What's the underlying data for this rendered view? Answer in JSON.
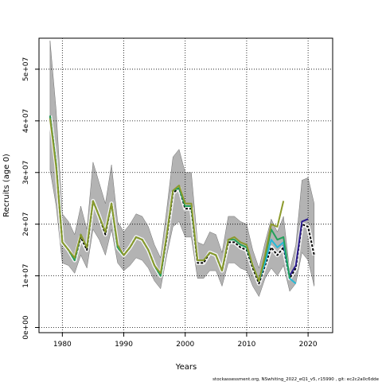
{
  "chart_data": {
    "type": "line",
    "xlabel": "Years",
    "ylabel": "Recruits (age 0)",
    "xlim": [
      1976.2,
      2024
    ],
    "ylim": [
      -1000000,
      56000000
    ],
    "x_ticks": [
      1980,
      1990,
      2000,
      2010,
      2020
    ],
    "x_tick_labels": [
      "1980",
      "1990",
      "2000",
      "2010",
      "2020"
    ],
    "y_ticks": [
      0,
      10000000,
      20000000,
      30000000,
      40000000,
      50000000
    ],
    "y_tick_labels": [
      "0e+00",
      "1e+07",
      "2e+07",
      "3e+07",
      "4e+07",
      "5e+07"
    ],
    "grid": true,
    "uncertainty_band": {
      "x": [
        1978,
        1979,
        1980,
        1981,
        1982,
        1983,
        1984,
        1985,
        1986,
        1987,
        1988,
        1989,
        1990,
        1991,
        1992,
        1993,
        1994,
        1995,
        1996,
        1997,
        1998,
        1999,
        2000,
        2001,
        2002,
        2003,
        2004,
        2005,
        2006,
        2007,
        2008,
        2009,
        2010,
        2011,
        2012,
        2013,
        2014,
        2015,
        2016,
        2017,
        2018,
        2019,
        2020,
        2021
      ],
      "upper": [
        55500000,
        42000000,
        22000000,
        20500000,
        18000000,
        23500000,
        19000000,
        32000000,
        28000000,
        24000000,
        31500000,
        20500000,
        18500000,
        20000000,
        22000000,
        21500000,
        19500000,
        16000000,
        13500000,
        23000000,
        33000000,
        34500000,
        30000000,
        30000000,
        16500000,
        16000000,
        18500000,
        18000000,
        14500000,
        21500000,
        21500000,
        20500000,
        20000000,
        15000000,
        11500000,
        16500000,
        21000000,
        18500000,
        21500000,
        11000000,
        16000000,
        28500000,
        29000000,
        24000000
      ],
      "lower": [
        30500000,
        23500000,
        12500000,
        12000000,
        10500000,
        14000000,
        11500000,
        19000000,
        17000000,
        14000000,
        19000000,
        12500000,
        11000000,
        12000000,
        13500000,
        13000000,
        11500000,
        9000000,
        7500000,
        14000000,
        19500000,
        20500000,
        17500000,
        17500000,
        9500000,
        9500000,
        11000000,
        11000000,
        8000000,
        12500000,
        12500000,
        11500000,
        11000000,
        8000000,
        6000000,
        9500000,
        11500000,
        10000000,
        12000000,
        7000000,
        8500000,
        14500000,
        13000000,
        8000000
      ]
    },
    "series": [
      {
        "color": "#f5f5f5",
        "x": [
          1978,
          1979,
          1980,
          1981,
          1982,
          1983,
          1984,
          1985,
          1986,
          1987,
          1988,
          1989,
          1990,
          1991,
          1992,
          1993,
          1994,
          1995,
          1996,
          1997,
          1998,
          1999,
          2000,
          2001,
          2002,
          2003,
          2004,
          2005,
          2006,
          2007,
          2008,
          2009,
          2010,
          2011,
          2012,
          2013,
          2014,
          2015,
          2016,
          2017,
          2018,
          2019,
          2020,
          2021
        ],
        "y": [
          41000000,
          31500000,
          16500000,
          15000000,
          13000000,
          17500000,
          15000000,
          24500000,
          21500000,
          18000000,
          24000000,
          15500000,
          14000000,
          15500000,
          17500000,
          17000000,
          15000000,
          12000000,
          10000000,
          17500000,
          26000000,
          27000000,
          23000000,
          23000000,
          12500000,
          12500000,
          14500000,
          14000000,
          11000000,
          16500000,
          16500000,
          15500000,
          15000000,
          11500000,
          8500000,
          12000000,
          15500000,
          14000000,
          15500000,
          9500000,
          11500000,
          20000000,
          19500000,
          14000000
        ]
      },
      {
        "color": "#000000",
        "x": [
          1978,
          1979,
          1980,
          1981,
          1982,
          1983,
          1984,
          1985,
          1986,
          1987,
          1988,
          1989,
          1990,
          1991,
          1992,
          1993,
          1994,
          1995,
          1996,
          1997,
          1998,
          1999,
          2000,
          2001,
          2002,
          2003,
          2004,
          2005,
          2006,
          2007,
          2008,
          2009,
          2010,
          2011,
          2012,
          2013,
          2014,
          2015,
          2016,
          2017,
          2018,
          2019,
          2020,
          2021
        ],
        "y": [
          41000000,
          31500000,
          16500000,
          15000000,
          13000000,
          17500000,
          15000000,
          24500000,
          21500000,
          18000000,
          24000000,
          15500000,
          14000000,
          15500000,
          17500000,
          17000000,
          15000000,
          12000000,
          10000000,
          17500000,
          26000000,
          27000000,
          23000000,
          23000000,
          12500000,
          12500000,
          14500000,
          14000000,
          11000000,
          16500000,
          16500000,
          15500000,
          15000000,
          11500000,
          8500000,
          12000000,
          15500000,
          14000000,
          15500000,
          9500000,
          11500000,
          20000000,
          19500000,
          14000000
        ]
      },
      {
        "color": "#2b1b8f",
        "x": [
          2016,
          2017,
          2018,
          2019,
          2020
        ],
        "y": [
          16000000,
          10000000,
          12000000,
          20500000,
          21000000
        ]
      },
      {
        "color": "#27b9d6",
        "x": [
          2010,
          2011,
          2012,
          2013,
          2014,
          2015,
          2016,
          2017,
          2018
        ],
        "y": [
          15500000,
          12000000,
          9000000,
          12500000,
          17000000,
          15500000,
          16500000,
          9500000,
          8500000
        ]
      },
      {
        "color": "#21a05a",
        "x": [
          1978,
          1979,
          1980,
          1981,
          1982,
          1983,
          1984,
          1985,
          1986,
          1987,
          1988,
          1989,
          1990,
          1991,
          1992,
          1993,
          1994,
          1995,
          1996,
          1997,
          1998,
          1999,
          2000,
          2001,
          2002,
          2003,
          2004,
          2005,
          2006,
          2007,
          2008,
          2009,
          2010,
          2011,
          2012,
          2013,
          2014,
          2015,
          2016,
          2017
        ],
        "y": [
          41000000,
          31500000,
          16500000,
          15000000,
          13000000,
          18000000,
          15500000,
          24500000,
          21500000,
          18500000,
          24000000,
          15500000,
          14000000,
          15500000,
          17500000,
          17000000,
          15000000,
          12000000,
          10000000,
          18000000,
          26500000,
          27000000,
          23500000,
          23500000,
          13000000,
          13000000,
          14500000,
          14000000,
          11000000,
          17000000,
          17000000,
          16000000,
          15500000,
          12000000,
          9000000,
          13500000,
          19000000,
          17000000,
          17500000,
          9500000
        ]
      },
      {
        "color": "#8c9a2c",
        "x": [
          1978,
          1979,
          1980,
          1981,
          1982,
          1983,
          1984,
          1985,
          1986,
          1987,
          1988,
          1989,
          1990,
          1991,
          1992,
          1993,
          1994,
          1995,
          1996,
          1997,
          1998,
          1999,
          2000,
          2001,
          2002,
          2003,
          2004,
          2005,
          2006,
          2007,
          2008,
          2009,
          2010,
          2011,
          2012,
          2013,
          2014,
          2015,
          2016
        ],
        "y": [
          40500000,
          31000000,
          16500000,
          15000000,
          13500000,
          18000000,
          15500000,
          24500000,
          21500000,
          18500000,
          24000000,
          16000000,
          14000000,
          15500000,
          17500000,
          17000000,
          15000000,
          12000000,
          10500000,
          18000000,
          26500000,
          27500000,
          24000000,
          24000000,
          13000000,
          13000000,
          14500000,
          14000000,
          11000000,
          17000000,
          17500000,
          16500000,
          16000000,
          12000000,
          9000000,
          14000000,
          20000000,
          19500000,
          24500000
        ]
      }
    ]
  },
  "footer": "stockassessment.org, NSwhiting_2022_eQ1_v5, r15990 , git: ec2c2a0c6dde"
}
